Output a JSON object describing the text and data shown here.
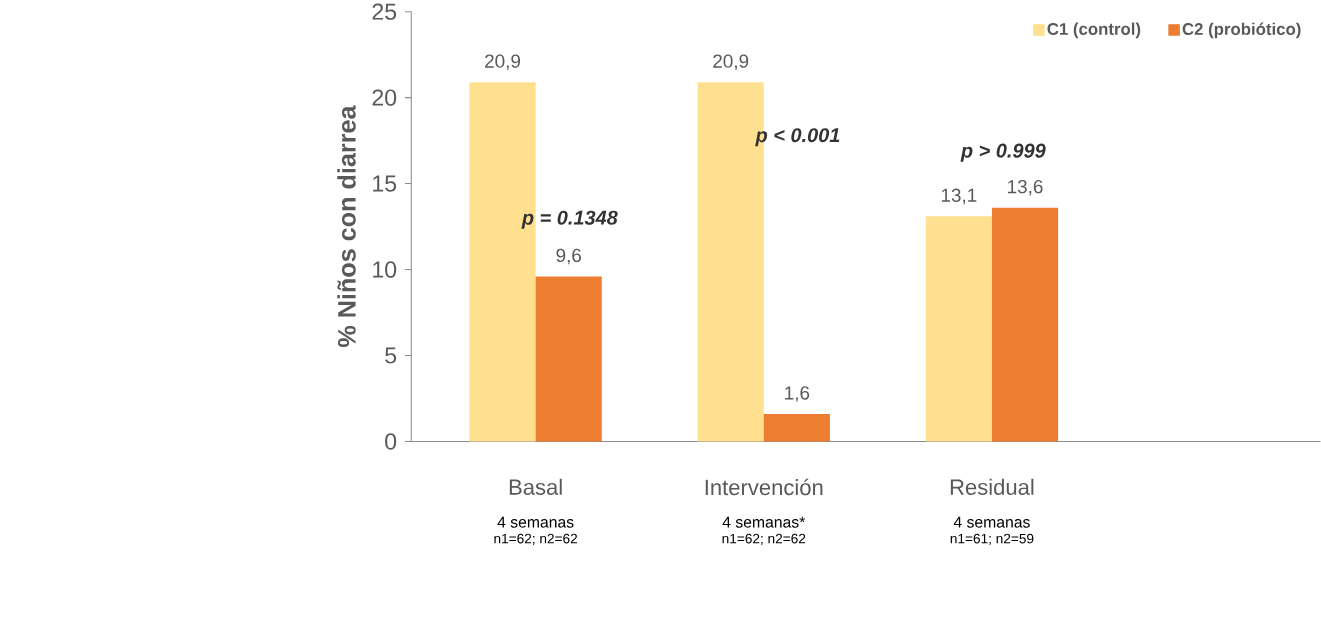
{
  "chart_data": {
    "type": "bar",
    "categories": [
      "Basal",
      "Intervención",
      "Residual"
    ],
    "ylabel": "% Niños con diarrea",
    "ylim": [
      0,
      25
    ],
    "yticks": [
      0,
      5,
      10,
      15,
      20,
      25
    ],
    "legend": "top right",
    "series": [
      {
        "name": "C1 (control)",
        "color": "#ffe08f",
        "values": [
          20.9,
          20.9,
          13.1
        ],
        "value_labels": [
          "20,9",
          "20,9",
          "13,1"
        ]
      },
      {
        "name": "C2 (probiótico)",
        "color": "#ed7d31",
        "values": [
          9.6,
          1.6,
          13.6
        ],
        "value_labels": [
          "9,6",
          "1,6",
          "13,6"
        ]
      }
    ],
    "annotations": [
      {
        "text": "p = 0.1348",
        "x": "Basal",
        "y": 12.9
      },
      {
        "text": "p < 0.001",
        "x": "Intervención",
        "y": 17.7
      },
      "p > 0.999",
      "4 semanas",
      "n1=62; n2=62",
      "4 semanas*",
      "n1=62; n2=62",
      "4 semanas",
      "n1=61; n2=59"
    ]
  }
}
